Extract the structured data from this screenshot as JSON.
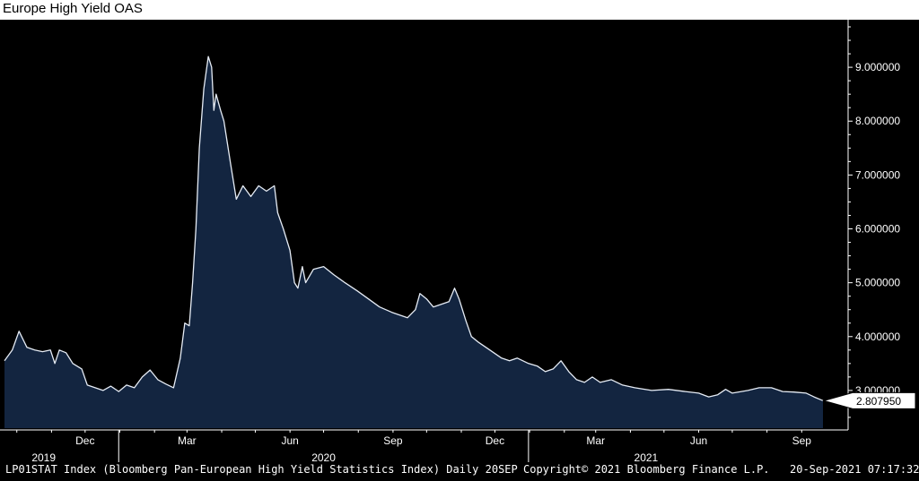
{
  "title": "Europe High Yield OAS",
  "footer": {
    "left": "LP01STAT Index (Bloomberg Pan-European High Yield Statistics Index)  Daily 20SEP",
    "middle": "Copyright© 2021 Bloomberg Finance L.P.",
    "right": "20-Sep-2021 07:17:32"
  },
  "colors": {
    "background": "#000000",
    "area_fill": "#132540",
    "line": "#e6ecf5",
    "axis": "#ffffff"
  },
  "chart_data": {
    "type": "area",
    "title": "Europe High Yield OAS",
    "x_range": [
      "2019-09-20",
      "2021-09-20"
    ],
    "ylim": [
      2.3,
      9.8
    ],
    "y_axis_side": "right",
    "yticks": [
      3,
      4,
      5,
      6,
      7,
      8,
      9
    ],
    "ytick_labels": [
      "3.000000",
      "4.000000",
      "5.000000",
      "6.000000",
      "7.000000",
      "8.000000",
      "9.000000"
    ],
    "last_value_label": "2.807950",
    "month_labels": [
      {
        "label": "Dec",
        "date": "2019-12-01"
      },
      {
        "label": "Mar",
        "date": "2020-03-01"
      },
      {
        "label": "Jun",
        "date": "2020-06-01"
      },
      {
        "label": "Sep",
        "date": "2020-09-01"
      },
      {
        "label": "Dec",
        "date": "2020-12-01"
      },
      {
        "label": "Mar",
        "date": "2021-03-01"
      },
      {
        "label": "Jun",
        "date": "2021-06-01"
      },
      {
        "label": "Sep",
        "date": "2021-09-01"
      }
    ],
    "year_labels": [
      {
        "label": "2019",
        "date": "2019-10-25"
      },
      {
        "label": "2020",
        "date": "2020-07-01"
      },
      {
        "label": "2021",
        "date": "2021-04-15"
      }
    ],
    "year_separators": [
      "2019-12-31",
      "2020-12-31"
    ],
    "series": [
      {
        "values": [
          [
            "2019-09-20",
            3.55
          ],
          [
            "2019-09-27",
            3.75
          ],
          [
            "2019-10-03",
            4.1
          ],
          [
            "2019-10-10",
            3.8
          ],
          [
            "2019-10-17",
            3.75
          ],
          [
            "2019-10-24",
            3.72
          ],
          [
            "2019-10-31",
            3.75
          ],
          [
            "2019-11-04",
            3.5
          ],
          [
            "2019-11-08",
            3.75
          ],
          [
            "2019-11-14",
            3.7
          ],
          [
            "2019-11-20",
            3.5
          ],
          [
            "2019-11-28",
            3.4
          ],
          [
            "2019-12-03",
            3.1
          ],
          [
            "2019-12-10",
            3.05
          ],
          [
            "2019-12-17",
            3.0
          ],
          [
            "2019-12-24",
            3.08
          ],
          [
            "2019-12-31",
            2.98
          ],
          [
            "2020-01-07",
            3.1
          ],
          [
            "2020-01-14",
            3.05
          ],
          [
            "2020-01-21",
            3.25
          ],
          [
            "2020-01-28",
            3.38
          ],
          [
            "2020-02-04",
            3.2
          ],
          [
            "2020-02-11",
            3.12
          ],
          [
            "2020-02-18",
            3.05
          ],
          [
            "2020-02-24",
            3.6
          ],
          [
            "2020-02-28",
            4.25
          ],
          [
            "2020-03-03",
            4.2
          ],
          [
            "2020-03-06",
            5.0
          ],
          [
            "2020-03-09",
            6.0
          ],
          [
            "2020-03-12",
            7.5
          ],
          [
            "2020-03-16",
            8.6
          ],
          [
            "2020-03-20",
            9.2
          ],
          [
            "2020-03-23",
            9.0
          ],
          [
            "2020-03-25",
            8.2
          ],
          [
            "2020-03-27",
            8.5
          ],
          [
            "2020-03-31",
            8.2
          ],
          [
            "2020-04-03",
            8.0
          ],
          [
            "2020-04-09",
            7.2
          ],
          [
            "2020-04-14",
            6.55
          ],
          [
            "2020-04-20",
            6.8
          ],
          [
            "2020-04-27",
            6.6
          ],
          [
            "2020-05-04",
            6.8
          ],
          [
            "2020-05-11",
            6.7
          ],
          [
            "2020-05-18",
            6.8
          ],
          [
            "2020-05-21",
            6.3
          ],
          [
            "2020-05-26",
            6.0
          ],
          [
            "2020-06-01",
            5.6
          ],
          [
            "2020-06-05",
            5.0
          ],
          [
            "2020-06-08",
            4.9
          ],
          [
            "2020-06-12",
            5.3
          ],
          [
            "2020-06-15",
            5.0
          ],
          [
            "2020-06-22",
            5.25
          ],
          [
            "2020-07-01",
            5.3
          ],
          [
            "2020-07-10",
            5.15
          ],
          [
            "2020-07-20",
            5.0
          ],
          [
            "2020-07-31",
            4.85
          ],
          [
            "2020-08-10",
            4.7
          ],
          [
            "2020-08-20",
            4.55
          ],
          [
            "2020-08-31",
            4.45
          ],
          [
            "2020-09-07",
            4.4
          ],
          [
            "2020-09-14",
            4.35
          ],
          [
            "2020-09-21",
            4.5
          ],
          [
            "2020-09-25",
            4.8
          ],
          [
            "2020-10-01",
            4.7
          ],
          [
            "2020-10-07",
            4.55
          ],
          [
            "2020-10-14",
            4.6
          ],
          [
            "2020-10-21",
            4.65
          ],
          [
            "2020-10-26",
            4.9
          ],
          [
            "2020-10-30",
            4.7
          ],
          [
            "2020-11-05",
            4.3
          ],
          [
            "2020-11-10",
            4.0
          ],
          [
            "2020-11-16",
            3.9
          ],
          [
            "2020-11-23",
            3.8
          ],
          [
            "2020-11-30",
            3.7
          ],
          [
            "2020-12-07",
            3.6
          ],
          [
            "2020-12-14",
            3.55
          ],
          [
            "2020-12-21",
            3.6
          ],
          [
            "2020-12-31",
            3.5
          ],
          [
            "2021-01-08",
            3.45
          ],
          [
            "2021-01-15",
            3.35
          ],
          [
            "2021-01-22",
            3.4
          ],
          [
            "2021-01-29",
            3.55
          ],
          [
            "2021-02-05",
            3.35
          ],
          [
            "2021-02-12",
            3.2
          ],
          [
            "2021-02-19",
            3.15
          ],
          [
            "2021-02-26",
            3.25
          ],
          [
            "2021-03-05",
            3.15
          ],
          [
            "2021-03-15",
            3.2
          ],
          [
            "2021-03-25",
            3.1
          ],
          [
            "2021-04-05",
            3.05
          ],
          [
            "2021-04-20",
            3.0
          ],
          [
            "2021-05-05",
            3.02
          ],
          [
            "2021-05-20",
            2.98
          ],
          [
            "2021-06-01",
            2.95
          ],
          [
            "2021-06-10",
            2.88
          ],
          [
            "2021-06-18",
            2.92
          ],
          [
            "2021-06-25",
            3.02
          ],
          [
            "2021-07-01",
            2.95
          ],
          [
            "2021-07-15",
            3.0
          ],
          [
            "2021-07-25",
            3.05
          ],
          [
            "2021-08-05",
            3.05
          ],
          [
            "2021-08-15",
            2.98
          ],
          [
            "2021-08-25",
            2.97
          ],
          [
            "2021-09-05",
            2.95
          ],
          [
            "2021-09-12",
            2.88
          ],
          [
            "2021-09-20",
            2.81
          ]
        ]
      }
    ]
  }
}
